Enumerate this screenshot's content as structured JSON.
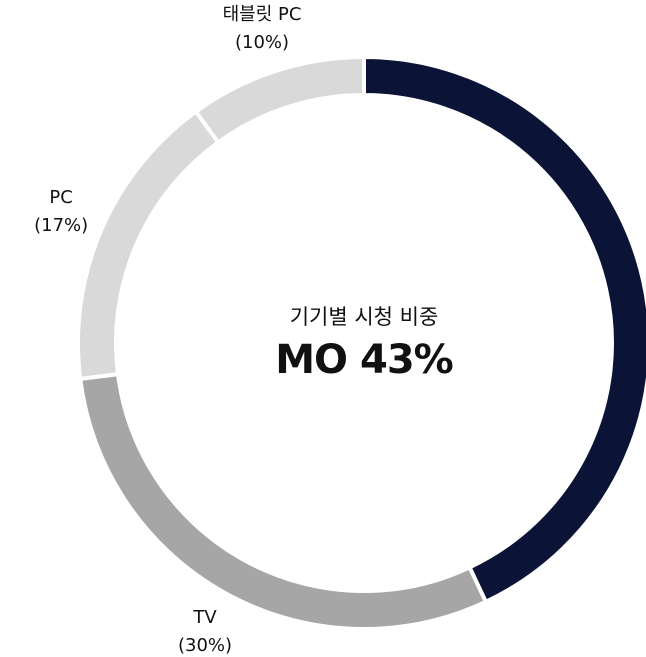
{
  "chart_data": {
    "type": "donut",
    "center_title": "기기별 시청 비중",
    "categories": [
      "MO",
      "TV",
      "PC",
      "태블릿 PC"
    ],
    "values": [
      43,
      30,
      17,
      10
    ],
    "value_labels": [
      "43%",
      "(30%)",
      "(17%)",
      "(10%)"
    ],
    "colors": [
      "#0b1437",
      "#a6a6a6",
      "#d9d9d9",
      "#d9d9d9"
    ]
  }
}
